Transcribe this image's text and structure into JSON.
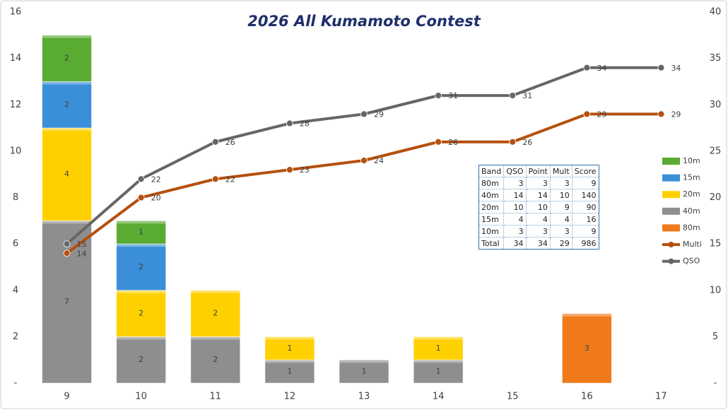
{
  "chart_data": {
    "type": "bar_line_combo",
    "title": "2026 All Kumamoto Contest",
    "categories": [
      "9",
      "10",
      "11",
      "12",
      "13",
      "14",
      "15",
      "16",
      "17"
    ],
    "series": [
      {
        "name": "80m",
        "type": "bar",
        "color": "#f07a1a",
        "values": [
          null,
          null,
          null,
          null,
          null,
          null,
          null,
          3,
          null
        ]
      },
      {
        "name": "40m",
        "type": "bar",
        "color": "#8e8e8e",
        "values": [
          7,
          2,
          2,
          1,
          1,
          1,
          null,
          null,
          null
        ]
      },
      {
        "name": "20m",
        "type": "bar",
        "color": "#ffd000",
        "values": [
          4,
          2,
          2,
          1,
          null,
          1,
          null,
          null,
          null
        ]
      },
      {
        "name": "15m",
        "type": "bar",
        "color": "#3b8fd8",
        "values": [
          2,
          2,
          null,
          null,
          null,
          null,
          null,
          null,
          null
        ]
      },
      {
        "name": "10m",
        "type": "bar",
        "color": "#5aab32",
        "values": [
          2,
          1,
          null,
          null,
          null,
          null,
          null,
          null,
          null
        ]
      },
      {
        "name": "Multi",
        "type": "line",
        "axis": "y2",
        "color": "#b5500f",
        "values": [
          14,
          20,
          22,
          23,
          24,
          26,
          26,
          29,
          29
        ]
      },
      {
        "name": "QSO",
        "type": "line",
        "axis": "y2",
        "color": "#666666",
        "values": [
          15,
          22,
          26,
          28,
          29,
          31,
          31,
          34,
          34
        ]
      }
    ],
    "ylim": [
      0,
      16
    ],
    "yticks": [
      {
        "value": 0,
        "label": "-"
      },
      2,
      4,
      6,
      8,
      10,
      12,
      14,
      16
    ],
    "y2lim": [
      0,
      40
    ],
    "y2ticks": [
      {
        "value": 0,
        "label": "-"
      },
      5,
      10,
      15,
      20,
      25,
      30,
      35,
      40
    ],
    "grid": false,
    "legend": "right",
    "table": {
      "columns": [
        "Band",
        "QSO",
        "Point",
        "Mult",
        "Score"
      ],
      "rows": [
        [
          "80m",
          3,
          3,
          3,
          9
        ],
        [
          "40m",
          14,
          14,
          10,
          140
        ],
        [
          "20m",
          10,
          10,
          9,
          90
        ],
        [
          "15m",
          4,
          4,
          4,
          16
        ],
        [
          "10m",
          3,
          3,
          3,
          9
        ],
        [
          "Total",
          34,
          34,
          29,
          986
        ]
      ]
    }
  }
}
